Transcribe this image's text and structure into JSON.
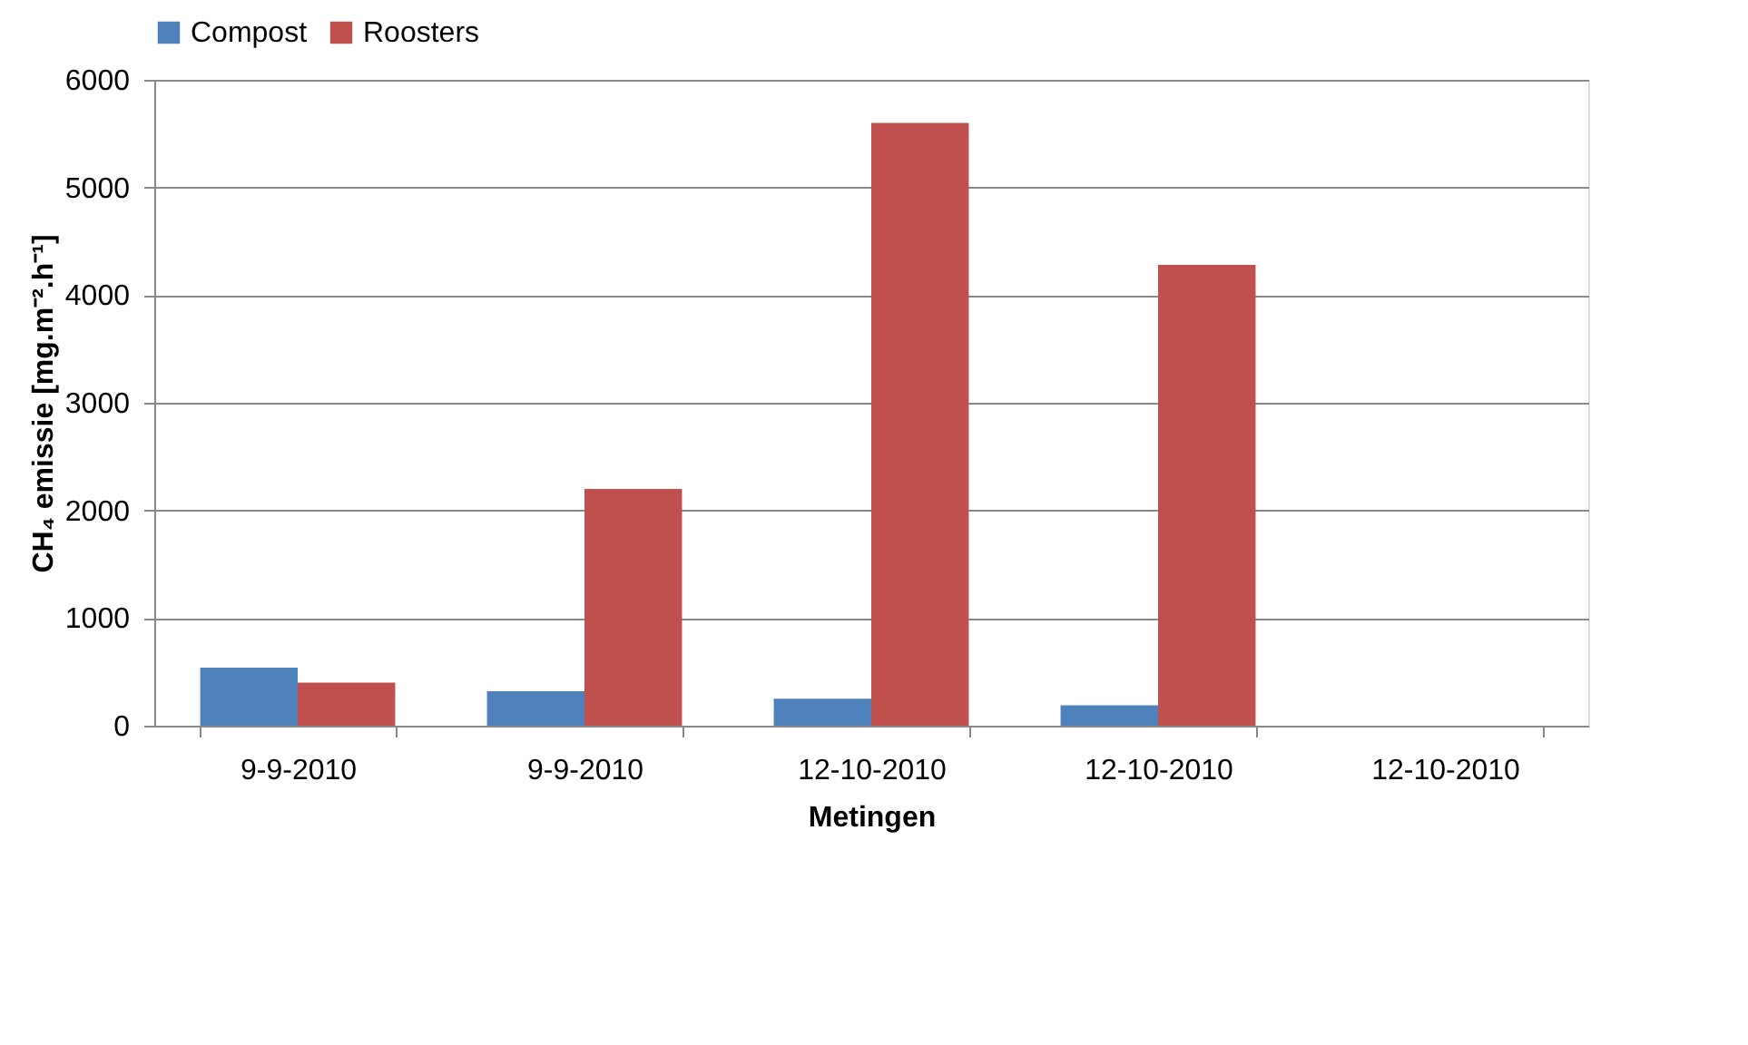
{
  "chart_data": {
    "type": "bar",
    "categories": [
      "9-9-2010",
      "9-9-2010",
      "12-10-2010",
      "12-10-2010",
      "12-10-2010"
    ],
    "series": [
      {
        "name": "Compost",
        "color": "#4f81bd",
        "values": [
          540,
          320,
          250,
          190,
          null
        ]
      },
      {
        "name": "Roosters",
        "color": "#c0504d",
        "values": [
          400,
          2200,
          5600,
          4280,
          null
        ]
      }
    ],
    "xlabel": "Metingen",
    "ylabel": "CH₄ emissie [mg.m⁻².h⁻¹]",
    "ylim": [
      0,
      6000
    ],
    "yticks": [
      0,
      1000,
      2000,
      3000,
      4000,
      5000,
      6000
    ],
    "grid": "y",
    "legend": "top"
  }
}
